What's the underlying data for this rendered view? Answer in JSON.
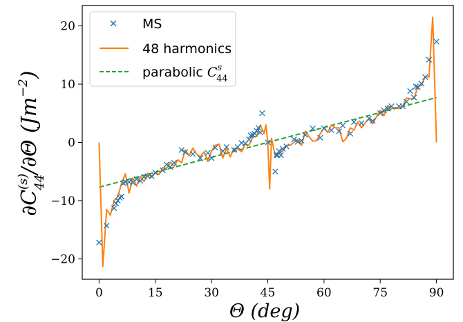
{
  "chart_data": {
    "type": "line",
    "title": "",
    "xlabel": "Θ (deg)",
    "ylabel": "∂C44(s)/∂Θ (Jm−2)",
    "xlim": [
      -4.5,
      94.5
    ],
    "ylim": [
      -23.5,
      23.5
    ],
    "xticks": [
      0,
      15,
      30,
      45,
      60,
      75,
      90
    ],
    "yticks": [
      -20,
      -10,
      0,
      10,
      20
    ],
    "grid": false,
    "legend_position": "top-left",
    "colors": {
      "ms": "#1f77b4",
      "harmonics": "#ff7f0e",
      "parabolic": "#2ca02c"
    },
    "series": [
      {
        "name": "MS",
        "style": "markers-x",
        "x": [
          0,
          2,
          4,
          4.5,
          5,
          5.5,
          6,
          6.5,
          7,
          8,
          9,
          10,
          11,
          12,
          13,
          14,
          15,
          17,
          18,
          19,
          20,
          22,
          23,
          25,
          27,
          29,
          30,
          31,
          33,
          34,
          36,
          37,
          38,
          39,
          40,
          40.5,
          41,
          41.5,
          42,
          42.5,
          43,
          43.5,
          45,
          47,
          47.3,
          47.6,
          48,
          48.5,
          49,
          50,
          52,
          53,
          54,
          55,
          57,
          59,
          60,
          62,
          64,
          65,
          67,
          68,
          70,
          72,
          73,
          75,
          76,
          77,
          78,
          80,
          81,
          82,
          83,
          84,
          84.5,
          85,
          86,
          87,
          88,
          90
        ],
        "y": [
          -17.2,
          -14.3,
          -11.3,
          -10.5,
          -10,
          -9.5,
          -9.3,
          -7,
          -6.8,
          -6.8,
          -6.9,
          -6.3,
          -6.6,
          -5.9,
          -5.8,
          -5.8,
          -5.2,
          -4.8,
          -3.8,
          -4.2,
          -3.5,
          -1.3,
          -1.7,
          -2,
          -2.7,
          -1.8,
          -2.7,
          -0.9,
          -1.5,
          -0.8,
          -1.3,
          -0.8,
          -0.1,
          -0.2,
          0.5,
          1.2,
          1.3,
          1.5,
          2,
          2.5,
          1.7,
          5,
          0,
          -5,
          -2.2,
          -2.2,
          -1.5,
          -2.2,
          -1.1,
          -0.7,
          0.5,
          0.1,
          0.3,
          1.3,
          2.4,
          0.8,
          2.4,
          2.1,
          1.9,
          2.9,
          1.5,
          3.5,
          3.3,
          4.1,
          3.7,
          5,
          5.5,
          5.8,
          6.2,
          6.2,
          6.2,
          7,
          8.8,
          7.7,
          9.6,
          9.5,
          10.1,
          11.2,
          14.2,
          17.3
        ]
      },
      {
        "name": "48 harmonics",
        "style": "line",
        "x": [
          0,
          1,
          2,
          3,
          4,
          5,
          6,
          7,
          8,
          9,
          10,
          11,
          12,
          13,
          14,
          15,
          16,
          17,
          18,
          19,
          20,
          21,
          22,
          23,
          24,
          25,
          26,
          27,
          28,
          29,
          30,
          31,
          32,
          33,
          34,
          35,
          36,
          37,
          38,
          39,
          40,
          41,
          42,
          43,
          44,
          44.5,
          45,
          45.5,
          46,
          47,
          48,
          49,
          50,
          51,
          52,
          53,
          54,
          55,
          56,
          57,
          58,
          59,
          60,
          61,
          62,
          63,
          64,
          65,
          66,
          67,
          68,
          69,
          70,
          71,
          72,
          73,
          74,
          75,
          76,
          77,
          78,
          79,
          80,
          81,
          82,
          83,
          84,
          85,
          86,
          87,
          88,
          89,
          90
        ],
        "y": [
          0,
          -21.3,
          -11.5,
          -12.5,
          -10,
          -9.3,
          -7,
          -5.4,
          -8.7,
          -6.1,
          -7.5,
          -5.9,
          -6.7,
          -5.3,
          -6,
          -5.2,
          -5.5,
          -4.3,
          -4.5,
          -3.4,
          -4.1,
          -3,
          -3.5,
          -1.3,
          -2.3,
          -1,
          -2,
          -2.5,
          -1.6,
          -3.3,
          -1.5,
          -0.5,
          -0.3,
          -2.7,
          -1,
          -2.5,
          -1,
          -1.1,
          -1.6,
          -0.3,
          -0.5,
          1,
          1,
          3,
          1.5,
          3,
          0,
          -8,
          0.7,
          -2.4,
          -1.8,
          -1.5,
          -0.5,
          -0.5,
          0,
          0.5,
          -0.5,
          1.9,
          1,
          0.2,
          0.3,
          1.5,
          2.5,
          1.7,
          3,
          2.5,
          2.5,
          0.1,
          0.7,
          2.5,
          2.1,
          3.5,
          2.5,
          3.4,
          4,
          3.2,
          4.4,
          5.5,
          4.6,
          6.3,
          5.8,
          6,
          5.8,
          6.2,
          7.6,
          7.5,
          7.5,
          9.5,
          9.8,
          11.3,
          11.2,
          21.5,
          0
        ]
      },
      {
        "name": "parabolic C44s",
        "style": "dashed",
        "x": [
          0,
          90
        ],
        "y": [
          -7.7,
          7.7
        ]
      }
    ]
  },
  "legend": {
    "items": [
      {
        "label": "MS"
      },
      {
        "label": "48 harmonics"
      },
      {
        "label": "parabolic ",
        "math": "C",
        "sup": "s",
        "sub": "44"
      }
    ]
  },
  "axes": {
    "xlabel_main": "Θ (",
    "xlabel_unit": "deg",
    "xlabel_end": ")",
    "ylabel_prefix": "∂C",
    "ylabel_sup": "(s)",
    "ylabel_sub": "44",
    "ylabel_mid": "/∂Θ (",
    "ylabel_unit": "Jm",
    "ylabel_exp": "−2",
    "ylabel_end": ")"
  }
}
